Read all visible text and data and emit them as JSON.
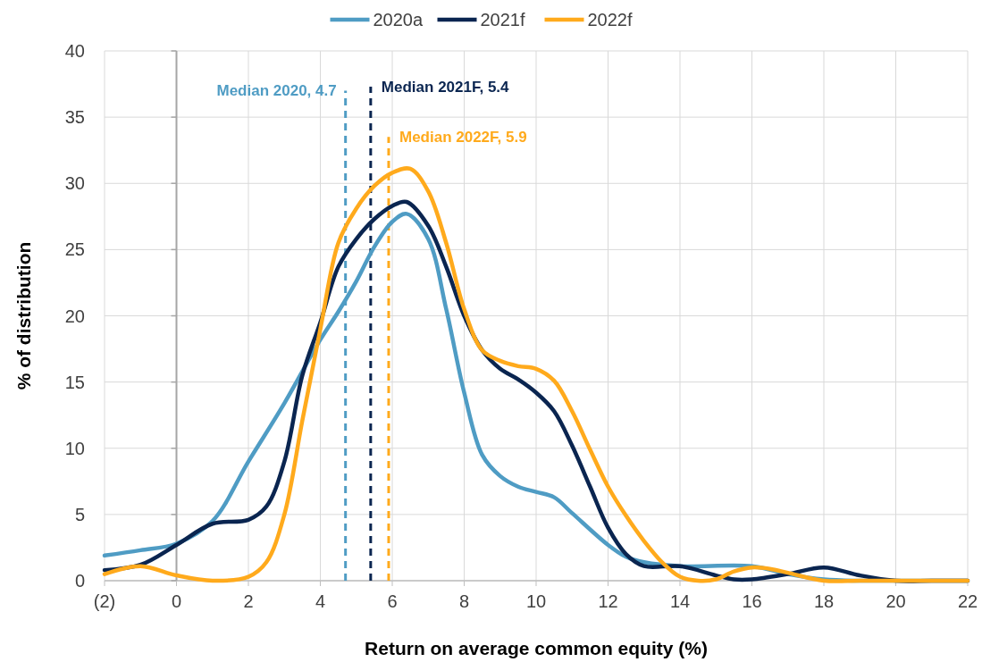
{
  "chart_data": {
    "type": "line",
    "xlabel": "Return on average common equity (%)",
    "ylabel": "% of distribution",
    "xlim": [
      -2,
      22
    ],
    "xticks": [
      {
        "value": -2,
        "label": "(2)"
      },
      0,
      2,
      4,
      6,
      8,
      10,
      12,
      14,
      16,
      18,
      20,
      22
    ],
    "ylim": [
      0,
      40
    ],
    "yticks": [
      0,
      5,
      10,
      15,
      20,
      25,
      30,
      35,
      40
    ],
    "grid": true,
    "legend": "top",
    "line_style": "solid",
    "marker": "none",
    "series": [
      {
        "name": "2020a",
        "color": "#4f9cc4",
        "x": [
          -2,
          -1,
          0,
          1,
          2,
          3,
          4,
          4.5,
          5,
          5.5,
          6,
          6.4,
          7,
          7.5,
          8,
          8.5,
          9,
          9.5,
          10,
          10.5,
          11,
          12,
          12.5,
          13,
          14,
          16,
          17,
          18,
          19,
          20,
          21,
          22
        ],
        "values": [
          1.9,
          2.3,
          2.8,
          4.5,
          9,
          13.4,
          18.2,
          20.3,
          22.6,
          25.2,
          27.1,
          27.7,
          25.8,
          20.5,
          14.2,
          9.5,
          7.9,
          7.1,
          6.7,
          6.3,
          5.1,
          2.7,
          1.8,
          1.4,
          1.1,
          1.1,
          0.5,
          0.1,
          0,
          0,
          0,
          0
        ]
      },
      {
        "name": "2021f",
        "color": "#0a2550",
        "x": [
          -2,
          -1,
          0,
          1,
          2,
          2.5,
          3,
          3.5,
          4,
          4.5,
          5,
          5.5,
          6,
          6.4,
          7,
          7.5,
          8,
          8.5,
          9,
          9.5,
          10,
          10.5,
          11,
          11.5,
          12,
          12.5,
          13,
          14,
          15,
          15.5,
          16,
          17,
          18,
          19,
          20,
          21,
          22
        ],
        "values": [
          0.8,
          1.2,
          2.7,
          4.3,
          4.6,
          5.6,
          9,
          15.5,
          19.5,
          23.7,
          25.8,
          27.3,
          28.3,
          28.6,
          26.8,
          23.7,
          20,
          17.4,
          16,
          15.2,
          14.2,
          12.8,
          10.2,
          7.1,
          4,
          2,
          1.1,
          1.1,
          0.4,
          0.1,
          0.1,
          0.5,
          1,
          0.4,
          0,
          0,
          0
        ]
      },
      {
        "name": "2022f",
        "color": "#ffaa1c",
        "x": [
          -2,
          -1,
          0,
          1,
          2,
          2.5,
          3,
          3.5,
          4,
          4.5,
          5,
          5.5,
          6,
          6.5,
          7,
          7.5,
          8,
          8.5,
          9,
          9.5,
          10,
          10.5,
          11,
          11.5,
          12,
          12.5,
          13,
          13.5,
          14,
          14.5,
          15,
          15.5,
          16,
          16.5,
          17,
          18,
          19,
          20,
          21,
          22
        ],
        "values": [
          0.5,
          1.1,
          0.4,
          0,
          0.3,
          1.4,
          5,
          12.1,
          19,
          25.5,
          28.1,
          29.8,
          30.8,
          31.1,
          29.4,
          25.5,
          20.5,
          17.4,
          16.6,
          16.2,
          16,
          15.1,
          12.8,
          9.9,
          7.1,
          4.9,
          3,
          1.4,
          0.3,
          0,
          0.1,
          0.7,
          1,
          0.9,
          0.6,
          0,
          0,
          0,
          0,
          0
        ]
      }
    ],
    "ref_lines": [
      {
        "axis": "x",
        "value": 4.7,
        "label": "Median 2020, 4.7",
        "color": "#4f9cc4",
        "line_style": "dashed"
      },
      {
        "axis": "x",
        "value": 5.4,
        "label": "Median 2021F, 5.4",
        "color": "#0a2550",
        "line_style": "dashed"
      },
      {
        "axis": "x",
        "value": 5.9,
        "label": "Median 2022F, 5.9",
        "color": "#ffaa1c",
        "line_style": "dashed"
      }
    ]
  }
}
